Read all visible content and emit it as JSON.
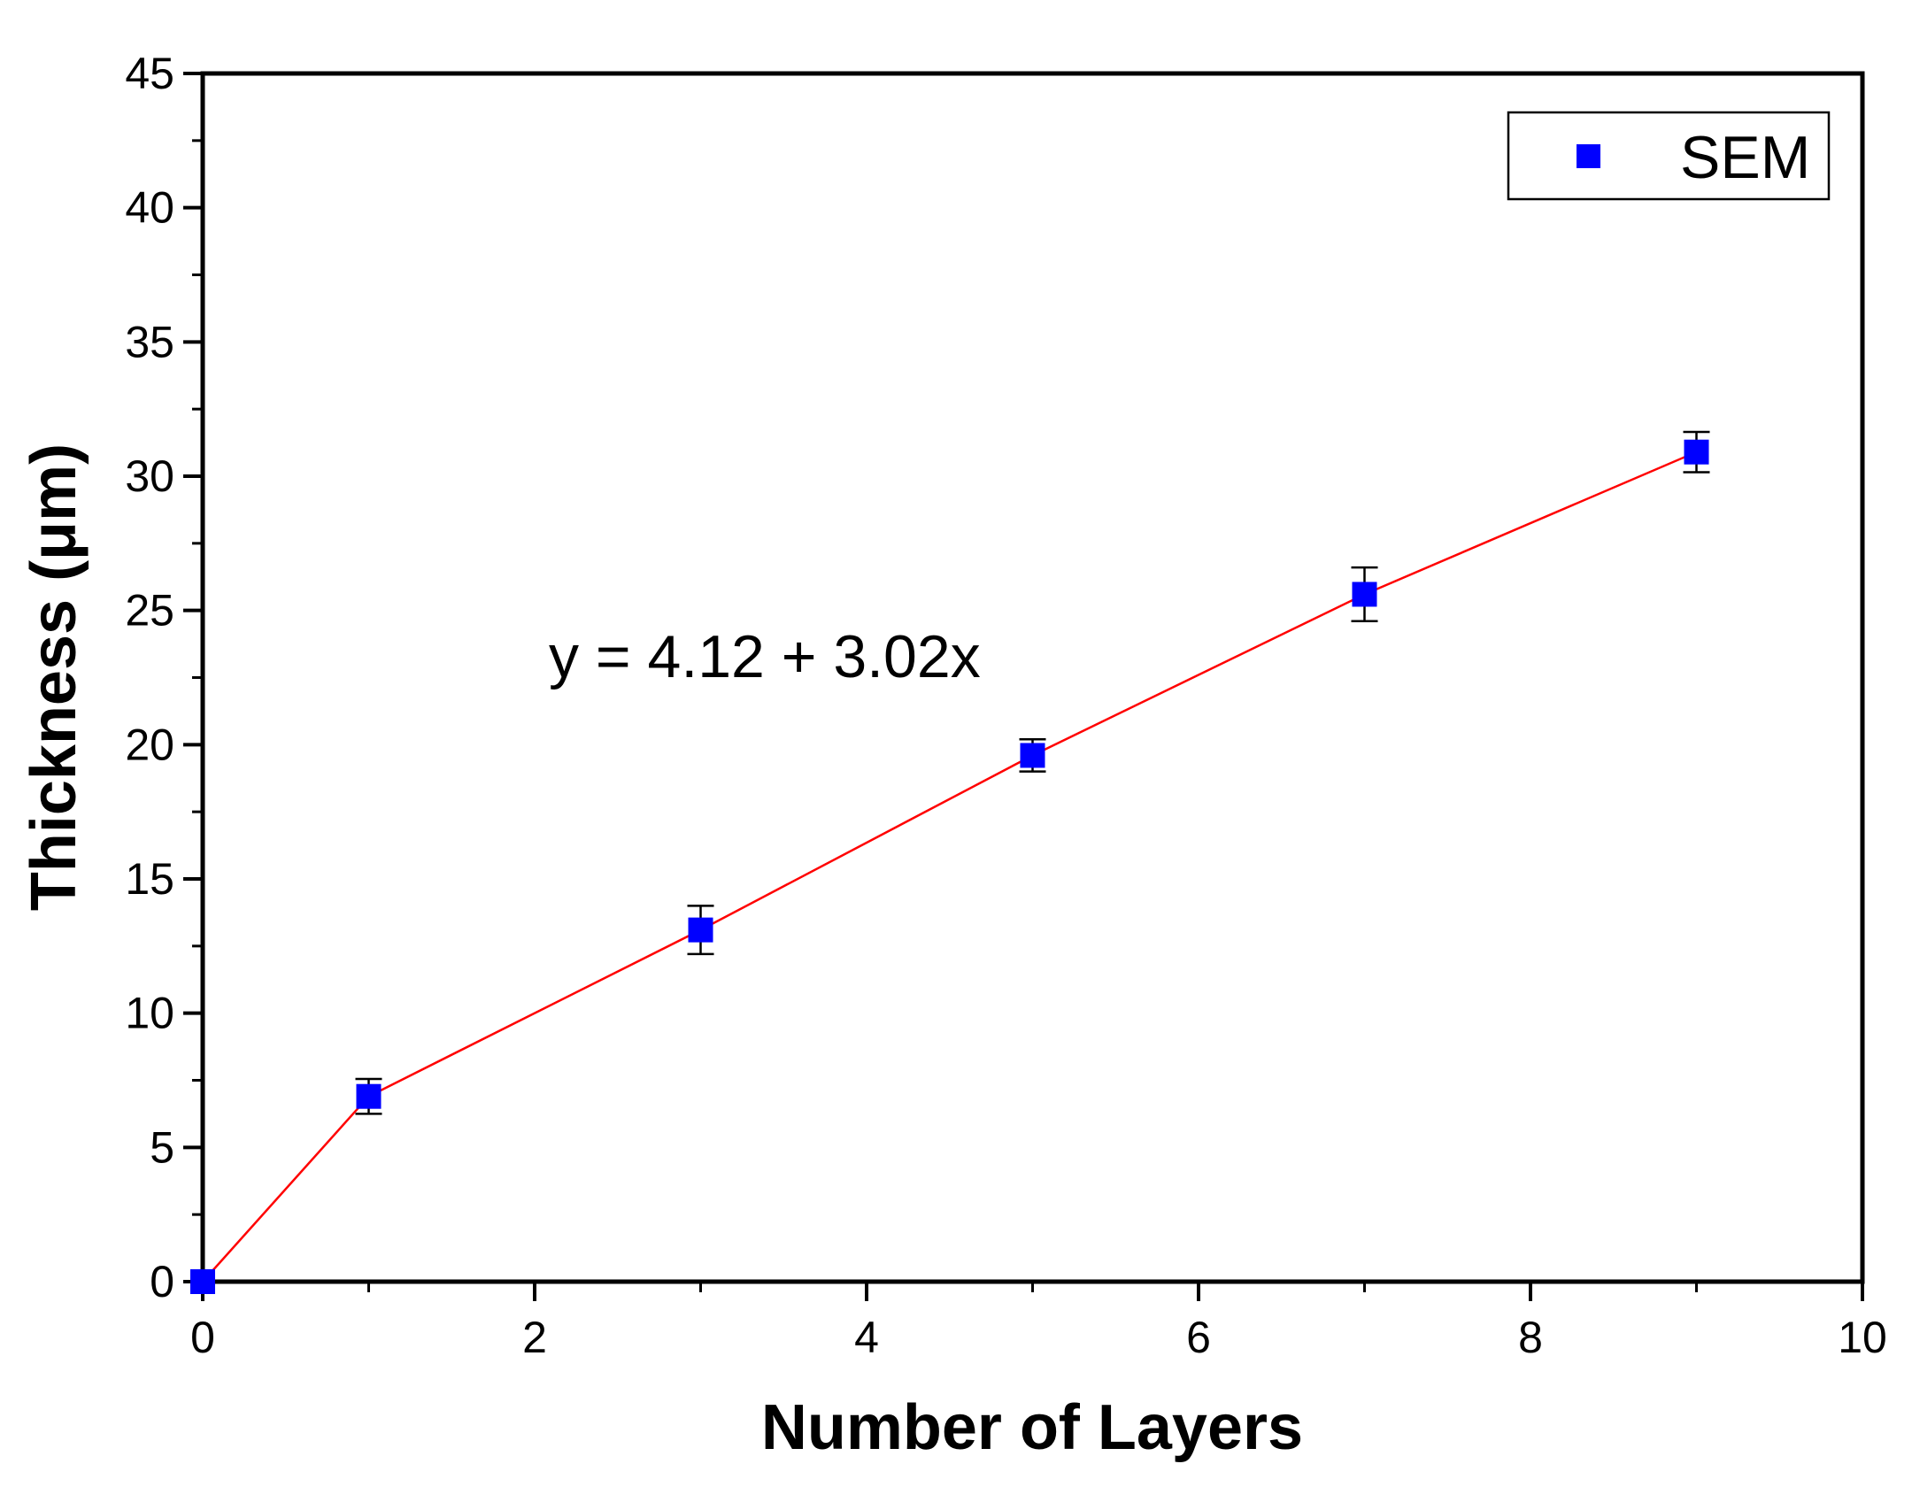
{
  "chart_data": {
    "type": "line",
    "xlabel": "Number of Layers",
    "ylabel": "Thickness (μm)",
    "xlim": [
      0,
      10
    ],
    "ylim": [
      0,
      45
    ],
    "x_ticks": [
      "0",
      "2",
      "4",
      "6",
      "8",
      "10"
    ],
    "y_ticks": [
      "0",
      "5",
      "10",
      "15",
      "20",
      "25",
      "30",
      "35",
      "40",
      "45"
    ],
    "grid": false,
    "legend_position": "top-right",
    "series": [
      {
        "name": "SEM",
        "marker": "square",
        "marker_color": "#0000ff",
        "line_color": "#ff0000",
        "x": [
          0,
          1,
          3,
          5,
          7,
          9
        ],
        "y": [
          0,
          6.9,
          13.1,
          19.6,
          25.6,
          30.9
        ],
        "yerr": [
          0,
          0.65,
          0.9,
          0.6,
          1.0,
          0.75
        ]
      }
    ],
    "annotations": [
      {
        "text": "y = 4.12 + 3.02x"
      }
    ]
  }
}
